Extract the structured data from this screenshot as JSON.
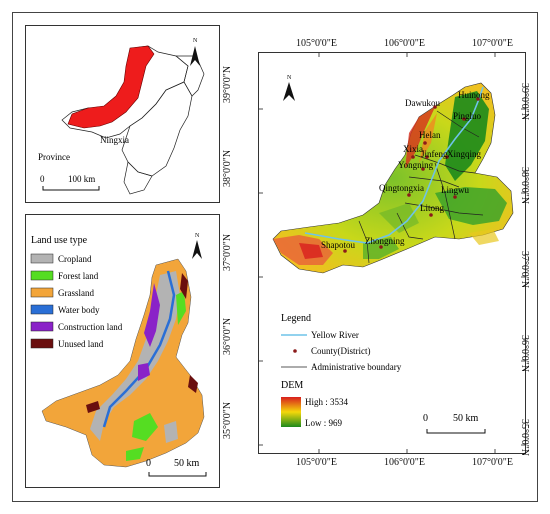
{
  "inset": {
    "province_label": "Ningxia",
    "legend_label": "Province",
    "scale": {
      "zero": "0",
      "distance": "100 km"
    },
    "north": "N"
  },
  "landuse": {
    "title": "Land use type",
    "north": "N",
    "items": [
      {
        "label": "Cropland",
        "color": "#b3b3b3"
      },
      {
        "label": "Forest land",
        "color": "#55dd22"
      },
      {
        "label": "Grassland",
        "color": "#f2a53a"
      },
      {
        "label": "Water body",
        "color": "#2a6fd6"
      },
      {
        "label": "Construction land",
        "color": "#8a22c8"
      },
      {
        "label": "Unused land",
        "color": "#6a0f0f"
      }
    ],
    "scale": {
      "zero": "0",
      "distance": "50 km"
    }
  },
  "dem_map": {
    "north": "N",
    "lon_labels": [
      "105°0'0\"E",
      "106°0'0\"E",
      "107°0'0\"E"
    ],
    "lat_labels": [
      "39°0'0\"N",
      "38°0'0\"N",
      "37°0'0\"N",
      "36°0'0\"N",
      "35°0'0\"N"
    ],
    "places": [
      "Huinong",
      "Dawukou",
      "Pingluo",
      "Helan",
      "Xixia",
      "Jinfeng",
      "Xingqing",
      "Yongning",
      "Qingtongxia",
      "Lingwu",
      "Litong",
      "Shapotou",
      "Zhongning"
    ],
    "legend": {
      "title": "Legend",
      "river": "Yellow River",
      "county": "County(District)",
      "boundary": "Administrative boundary"
    },
    "dem": {
      "title": "DEM",
      "high": "High : 3534",
      "low": "Low : 969"
    },
    "scale": {
      "zero": "0",
      "distance": "50 km"
    },
    "colors": {
      "river": "#6fc3e8",
      "county": "#8b1a1a",
      "dem_high": "#d81e1e",
      "dem_mid": "#f4d80a",
      "dem_low": "#1c8a1c"
    }
  }
}
